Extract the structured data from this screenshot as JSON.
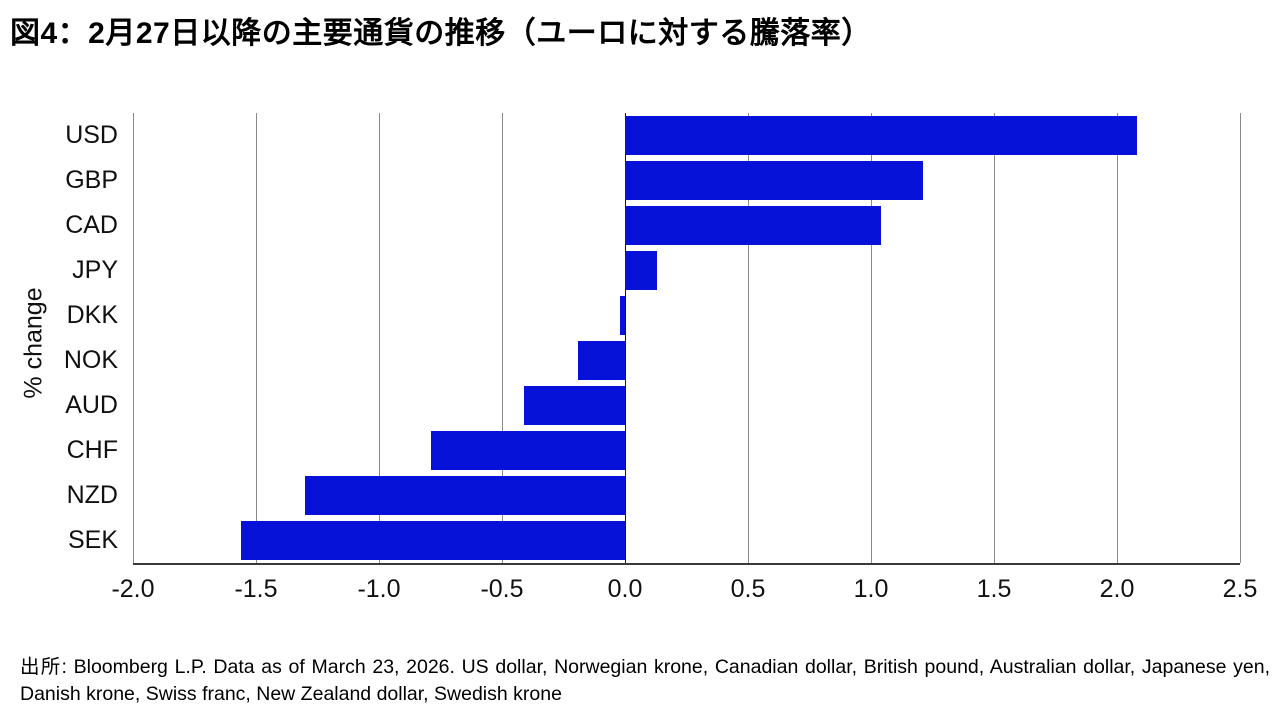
{
  "title": "図4：2月27日以降の主要通貨の推移（ユーロに対する騰落率）",
  "chart_data": {
    "type": "bar",
    "orientation": "horizontal",
    "title": "図4：2月27日以降の主要通貨の推移（ユーロに対する騰落率）",
    "categories": [
      "USD",
      "GBP",
      "CAD",
      "JPY",
      "DKK",
      "NOK",
      "AUD",
      "CHF",
      "NZD",
      "SEK"
    ],
    "values": [
      2.08,
      1.21,
      1.04,
      0.13,
      -0.02,
      -0.19,
      -0.41,
      -0.79,
      -1.3,
      -1.56
    ],
    "xlabel": "",
    "ylabel": "% change",
    "xlim": [
      -2.0,
      2.5
    ],
    "xticks": [
      -2.0,
      -1.5,
      -1.0,
      -0.5,
      0.0,
      0.5,
      1.0,
      1.5,
      2.0,
      2.5
    ],
    "xtick_labels": [
      "-2.0",
      "-1.5",
      "-1.0",
      "-0.5",
      "0.0",
      "0.5",
      "1.0",
      "1.5",
      "2.0",
      "2.5"
    ],
    "grid": true,
    "legend": false,
    "colors": {
      "bar": "#0712d9",
      "gridline": "#8a8a8a",
      "zero_line": "#1a1a1a",
      "axis_line": "#3a3a3a"
    }
  },
  "footer": "出所: Bloomberg L.P. Data as of March 23, 2026. US dollar, Norwegian krone, Canadian dollar, British pound, Australian dollar, Japanese yen, Danish krone, Swiss franc, New Zealand dollar, Swedish krone"
}
